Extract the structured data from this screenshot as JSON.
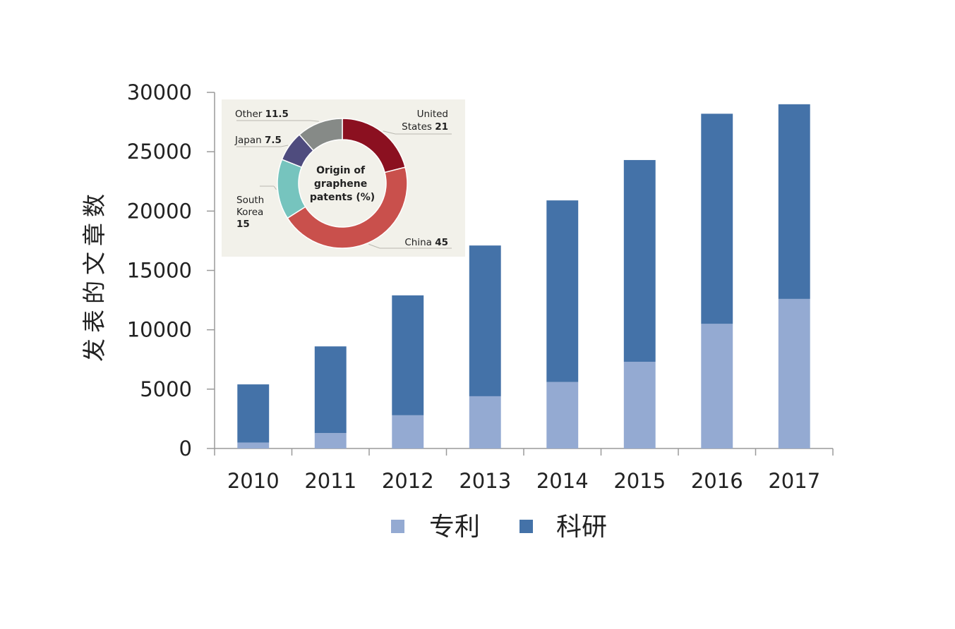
{
  "chart_data": [
    {
      "type": "bar",
      "stacked": true,
      "categories": [
        "2010",
        "2011",
        "2012",
        "2013",
        "2014",
        "2015",
        "2016",
        "2017"
      ],
      "series": [
        {
          "name": "专利",
          "color": "#94aad2",
          "values": [
            500,
            1300,
            2800,
            4400,
            5600,
            7300,
            10500,
            12600
          ]
        },
        {
          "name": "科研",
          "color": "#4472a8",
          "values": [
            4900,
            7300,
            10100,
            12700,
            15300,
            17000,
            17700,
            16400
          ]
        }
      ],
      "ylabel": "发表的文章数",
      "xlabel": "",
      "ylim": [
        0,
        30000
      ],
      "yticks": [
        "0",
        "5000",
        "10000",
        "15000",
        "20000",
        "25000",
        "30000"
      ],
      "grid": false,
      "legend_position": "bottom"
    },
    {
      "type": "pie",
      "donut": true,
      "title": "Origin of graphene patents (%)",
      "slices": [
        {
          "label": "United States",
          "value": 21,
          "value_label": "21",
          "color": "#8b1020"
        },
        {
          "label": "China",
          "value": 45,
          "value_label": "45",
          "color": "#c9504c"
        },
        {
          "label": "South Korea",
          "value": 15,
          "value_label": "15",
          "color": "#76c4be"
        },
        {
          "label": "Japan",
          "value": 7.5,
          "value_label": "7.5",
          "color": "#4f4c7e"
        },
        {
          "label": "Other",
          "value": 11.5,
          "value_label": "11.5",
          "color": "#868a87"
        }
      ]
    }
  ]
}
